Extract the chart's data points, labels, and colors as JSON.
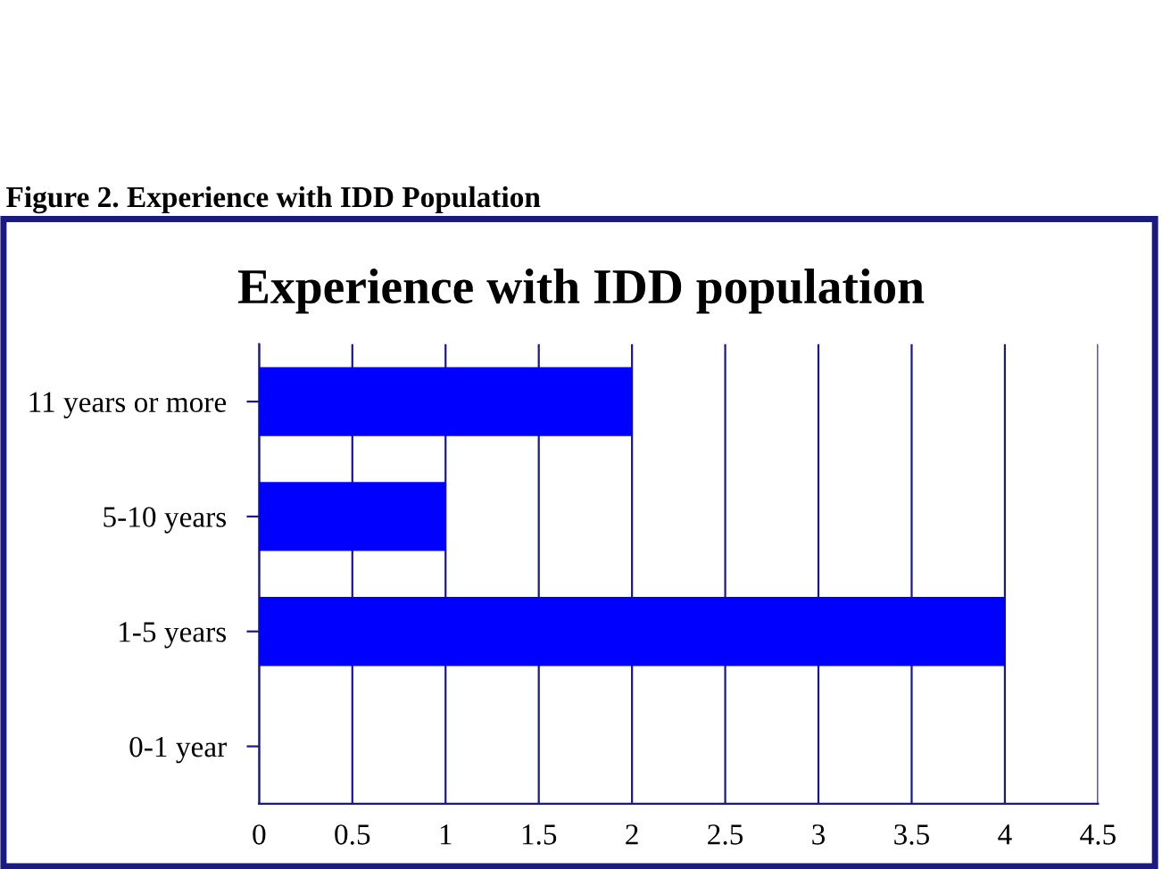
{
  "chart_data": {
    "type": "bar",
    "orientation": "horizontal",
    "title": "Experience with IDD population",
    "annotations": [
      "Figure 2. Experience with IDD Population"
    ],
    "categories": [
      "11 years or more",
      "5-10 years",
      "1-5 years",
      "0-1 year"
    ],
    "values": [
      2,
      1,
      4,
      0
    ],
    "color": "#0000ff",
    "xlim": [
      0,
      4.5
    ],
    "xticks": [
      0,
      0.5,
      1,
      1.5,
      2,
      2.5,
      3,
      3.5,
      4,
      4.5
    ],
    "grid": "x",
    "legend": false
  }
}
